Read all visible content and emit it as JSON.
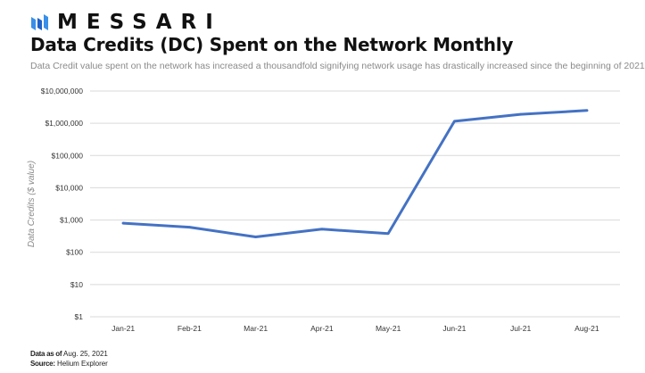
{
  "header": {
    "brand": "MESSARI",
    "title": "Data Credits (DC) Spent on the Network Monthly",
    "subtitle": "Data Credit value spent  on the network has increased a thousandfold signifying network usage has drastically increased since the beginning of 2021"
  },
  "footer": {
    "data_as_of_label": "Data as of",
    "data_as_of_value": "Aug. 25, 2021",
    "source_label": "Source",
    "source_value": "Helium Explorer"
  },
  "colors": {
    "line": "#4472c4",
    "grid": "#d9d9d9",
    "logo": "#3a8fe8"
  },
  "chart_data": {
    "type": "line",
    "scale": "log",
    "ylabel": "Data Credits ($ value)",
    "categories": [
      "Jan-21",
      "Feb-21",
      "Mar-21",
      "Apr-21",
      "May-21",
      "Jun-21",
      "Jul-21",
      "Aug-21"
    ],
    "yticks": [
      1,
      10,
      100,
      1000,
      10000,
      100000,
      1000000,
      10000000
    ],
    "ytick_labels": [
      "$1",
      "$10",
      "$100",
      "$1,000",
      "$10,000",
      "$100,000",
      "$1,000,000",
      "$10,000,000"
    ],
    "ylim": [
      1,
      10000000
    ],
    "grid": true,
    "series": [
      {
        "values": [
          800,
          600,
          300,
          520,
          380,
          1150000,
          1900000,
          2500000
        ]
      }
    ]
  }
}
